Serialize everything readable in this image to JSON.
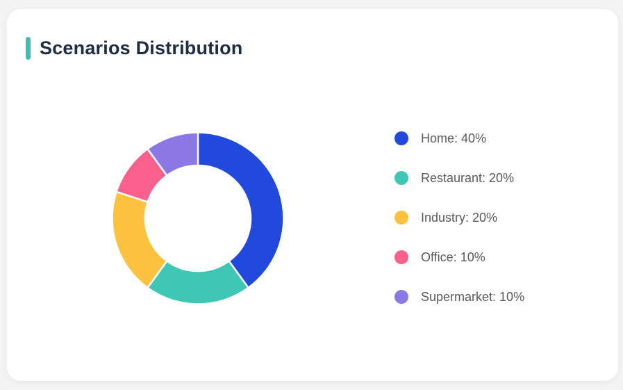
{
  "page": {
    "background_color": "#f4f4f5",
    "card_background": "#ffffff"
  },
  "header": {
    "title": "Scenarios Distribution",
    "accent_color": "#3bbfb4",
    "title_color": "#1f2d44"
  },
  "legend_text_color": "#5a5a5a",
  "chart_data": {
    "type": "pie",
    "variant": "donut",
    "title": "Scenarios Distribution",
    "start_angle_deg": 0,
    "direction": "clockwise",
    "inner_radius_ratio": 0.61,
    "segment_gap_color": "#ffffff",
    "legend_position": "right",
    "unit": "%",
    "categories": [
      "Home",
      "Restaurant",
      "Industry",
      "Office",
      "Supermarket"
    ],
    "values": [
      40,
      20,
      20,
      10,
      10
    ],
    "colors": [
      "#2149dc",
      "#3fc7b5",
      "#fcc23d",
      "#f9618c",
      "#8c78e4"
    ],
    "legend_labels": [
      "Home: 40%",
      "Restaurant: 20%",
      "Industry: 20%",
      "Office: 10%",
      "Supermarket: 10%"
    ]
  }
}
